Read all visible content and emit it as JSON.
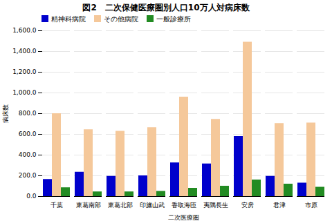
{
  "chart_data": {
    "type": "bar",
    "title": "図2　二次保健医療圏別人口10万人対病床数",
    "xlabel": "二次医療圏",
    "ylabel": "病床数",
    "categories": [
      "千葉",
      "東葛南部",
      "東葛北部",
      "印旛山武",
      "香取海匝",
      "夷隅長生",
      "安房",
      "君津",
      "市原"
    ],
    "series": [
      {
        "name": "精神科病院",
        "color": "#0000CC",
        "values": [
          165,
          235,
          195,
          200,
          325,
          315,
          580,
          195,
          130
        ]
      },
      {
        "name": "その他病院",
        "color": "#F5C89A",
        "values": [
          800,
          645,
          630,
          665,
          960,
          745,
          1490,
          705,
          710
        ]
      },
      {
        "name": "一般診療所",
        "color": "#228B22",
        "values": [
          85,
          45,
          45,
          50,
          80,
          100,
          160,
          120,
          90
        ]
      }
    ],
    "ylim": [
      0,
      1600
    ],
    "yticks": [
      {
        "value": 0,
        "label": "0.0"
      },
      {
        "value": 200,
        "label": "200.0"
      },
      {
        "value": 400,
        "label": "400.0"
      },
      {
        "value": 600,
        "label": "600.0"
      },
      {
        "value": 800,
        "label": "800.0"
      },
      {
        "value": 1000,
        "label": "1,000.0"
      },
      {
        "value": 1200,
        "label": "1,200.0"
      },
      {
        "value": 1400,
        "label": "1,400.0"
      },
      {
        "value": 1600,
        "label": "1,600.0"
      }
    ],
    "grid": true,
    "legend": "upper left"
  }
}
